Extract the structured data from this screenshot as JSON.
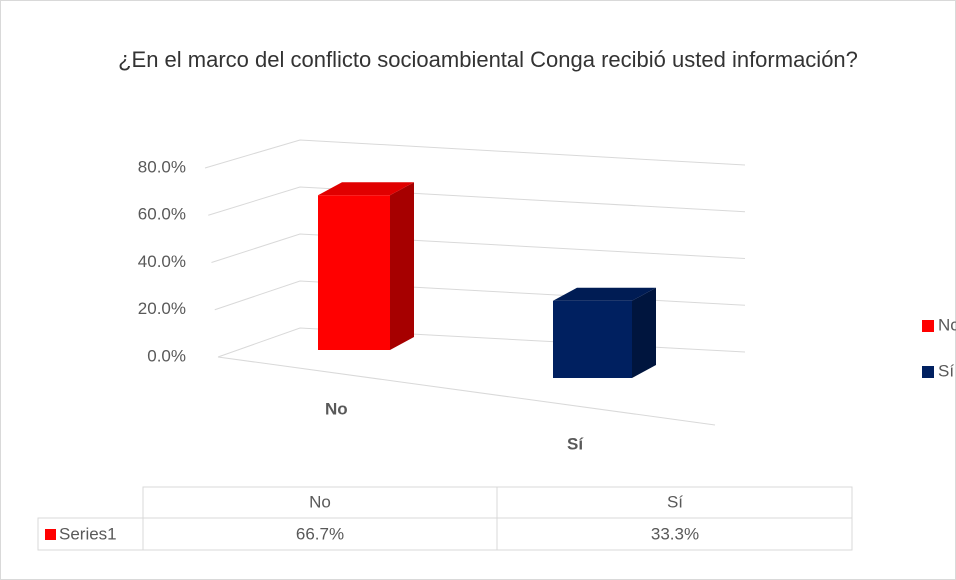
{
  "chart_data": {
    "type": "bar3d",
    "title": "¿En el marco del conflicto socioambiental Conga recibió usted información?",
    "categories": [
      "No",
      "Sí"
    ],
    "series": [
      {
        "name": "Series1",
        "values": [
          66.7,
          33.3
        ],
        "value_labels": [
          "66.7%",
          "33.3%"
        ],
        "colors": [
          "#ff0000",
          "#002060"
        ]
      }
    ],
    "ylim": [
      0,
      80
    ],
    "yticks": [
      {
        "value": 0,
        "label": "0.0%"
      },
      {
        "value": 20,
        "label": "20.0%"
      },
      {
        "value": 40,
        "label": "40.0%"
      },
      {
        "value": 60,
        "label": "60.0%"
      },
      {
        "value": 80,
        "label": "80.0%"
      }
    ],
    "grid": true,
    "legend": "right",
    "data_table": true
  }
}
